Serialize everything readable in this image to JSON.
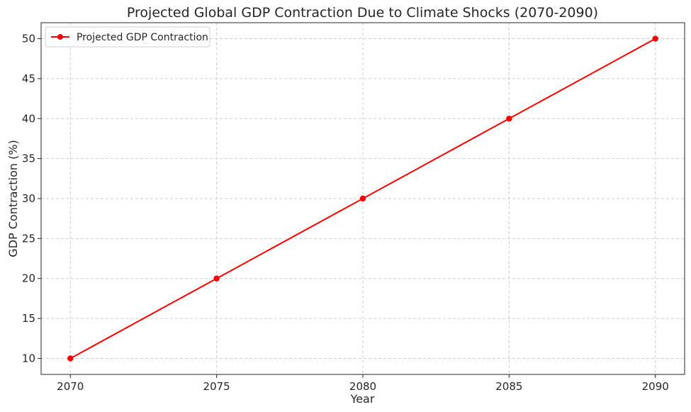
{
  "chart_data": {
    "type": "line",
    "title": "Projected Global GDP Contraction Due to Climate Shocks (2070-2090)",
    "xlabel": "Year",
    "ylabel": "GDP Contraction (%)",
    "x": [
      2070,
      2075,
      2080,
      2085,
      2090
    ],
    "series": [
      {
        "name": "Projected GDP Contraction",
        "values": [
          10,
          20,
          30,
          40,
          50
        ],
        "color": "#ff0000",
        "marker": "circle"
      }
    ],
    "x_ticks": [
      2070,
      2075,
      2080,
      2085,
      2090
    ],
    "y_ticks": [
      10,
      15,
      20,
      25,
      30,
      35,
      40,
      45,
      50
    ],
    "xlim": [
      2069,
      2091
    ],
    "ylim": [
      8,
      52
    ],
    "grid": true,
    "legend_position": "top-left"
  }
}
